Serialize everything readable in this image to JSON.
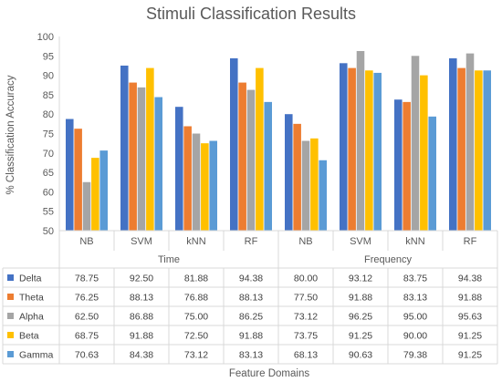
{
  "chart_data": {
    "type": "bar",
    "title": "Stimuli Classification Results",
    "ylabel": "% Classification Accuracy",
    "xlabel": "Feature Domains",
    "ylim": [
      50,
      100
    ],
    "yticks": [
      50,
      55,
      60,
      65,
      70,
      75,
      80,
      85,
      90,
      95,
      100
    ],
    "grid": false,
    "legend": "data-table",
    "groups": [
      {
        "label": "Time",
        "categories": [
          "NB",
          "SVM",
          "kNN",
          "RF"
        ]
      },
      {
        "label": "Frequency",
        "categories": [
          "NB",
          "SVM",
          "kNN",
          "RF"
        ]
      }
    ],
    "categories": [
      "NB",
      "SVM",
      "kNN",
      "RF",
      "NB",
      "SVM",
      "kNN",
      "RF"
    ],
    "series": [
      {
        "name": "Delta",
        "color": "#4472C4",
        "values": [
          78.75,
          92.5,
          81.88,
          94.38,
          80.0,
          93.12,
          83.75,
          94.38
        ]
      },
      {
        "name": "Theta",
        "color": "#ED7D31",
        "values": [
          76.25,
          88.13,
          76.88,
          88.13,
          77.5,
          91.88,
          83.13,
          91.88
        ]
      },
      {
        "name": "Alpha",
        "color": "#A5A5A5",
        "values": [
          62.5,
          86.88,
          75.0,
          86.25,
          73.12,
          96.25,
          95.0,
          95.63
        ]
      },
      {
        "name": "Beta",
        "color": "#FFC000",
        "values": [
          68.75,
          91.88,
          72.5,
          91.88,
          73.75,
          91.25,
          90.0,
          91.25
        ]
      },
      {
        "name": "Gamma",
        "color": "#5B9BD5",
        "values": [
          70.63,
          84.38,
          73.12,
          83.13,
          68.13,
          90.63,
          79.38,
          91.25
        ]
      }
    ],
    "table_values": [
      [
        "78.75",
        "92.50",
        "81.88",
        "94.38",
        "80.00",
        "93.12",
        "83.75",
        "94.38"
      ],
      [
        "76.25",
        "88.13",
        "76.88",
        "88.13",
        "77.50",
        "91.88",
        "83.13",
        "91.88"
      ],
      [
        "62.50",
        "86.88",
        "75.00",
        "86.25",
        "73.12",
        "96.25",
        "95.00",
        "95.63"
      ],
      [
        "68.75",
        "91.88",
        "72.50",
        "91.88",
        "73.75",
        "91.25",
        "90.00",
        "91.25"
      ],
      [
        "70.63",
        "84.38",
        "73.12",
        "83.13",
        "68.13",
        "90.63",
        "79.38",
        "91.25"
      ]
    ]
  }
}
